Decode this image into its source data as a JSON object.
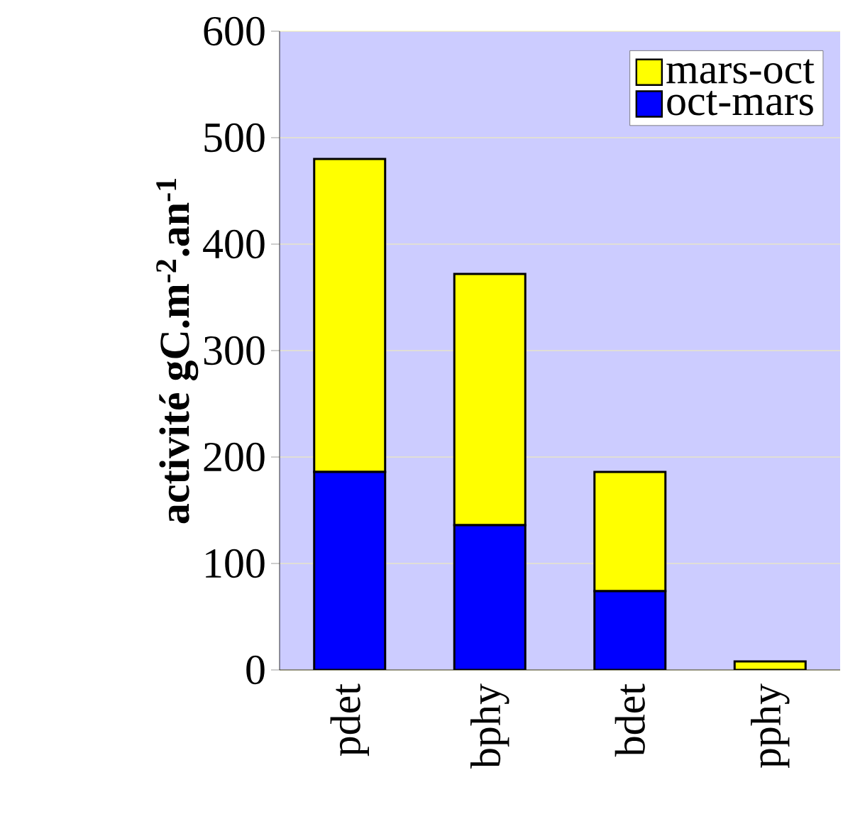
{
  "chart_data": {
    "type": "bar",
    "stacked": true,
    "ylabel": "activité gC.m$^{-2}$.an$^{-1}$",
    "categories": [
      "pdet",
      "bphy",
      "bdet",
      "pphy"
    ],
    "series": [
      {
        "name": "oct-mars",
        "color": "#0000ff",
        "values": [
          186,
          136,
          74,
          null
        ]
      },
      {
        "name": "mars-oct",
        "color": "#ffff00",
        "values": [
          294,
          236,
          112,
          8
        ]
      }
    ],
    "ylim": [
      0,
      600
    ],
    "yticks": [
      0,
      100,
      200,
      300,
      400,
      500,
      600
    ],
    "grid": "y",
    "legend": "top right"
  }
}
